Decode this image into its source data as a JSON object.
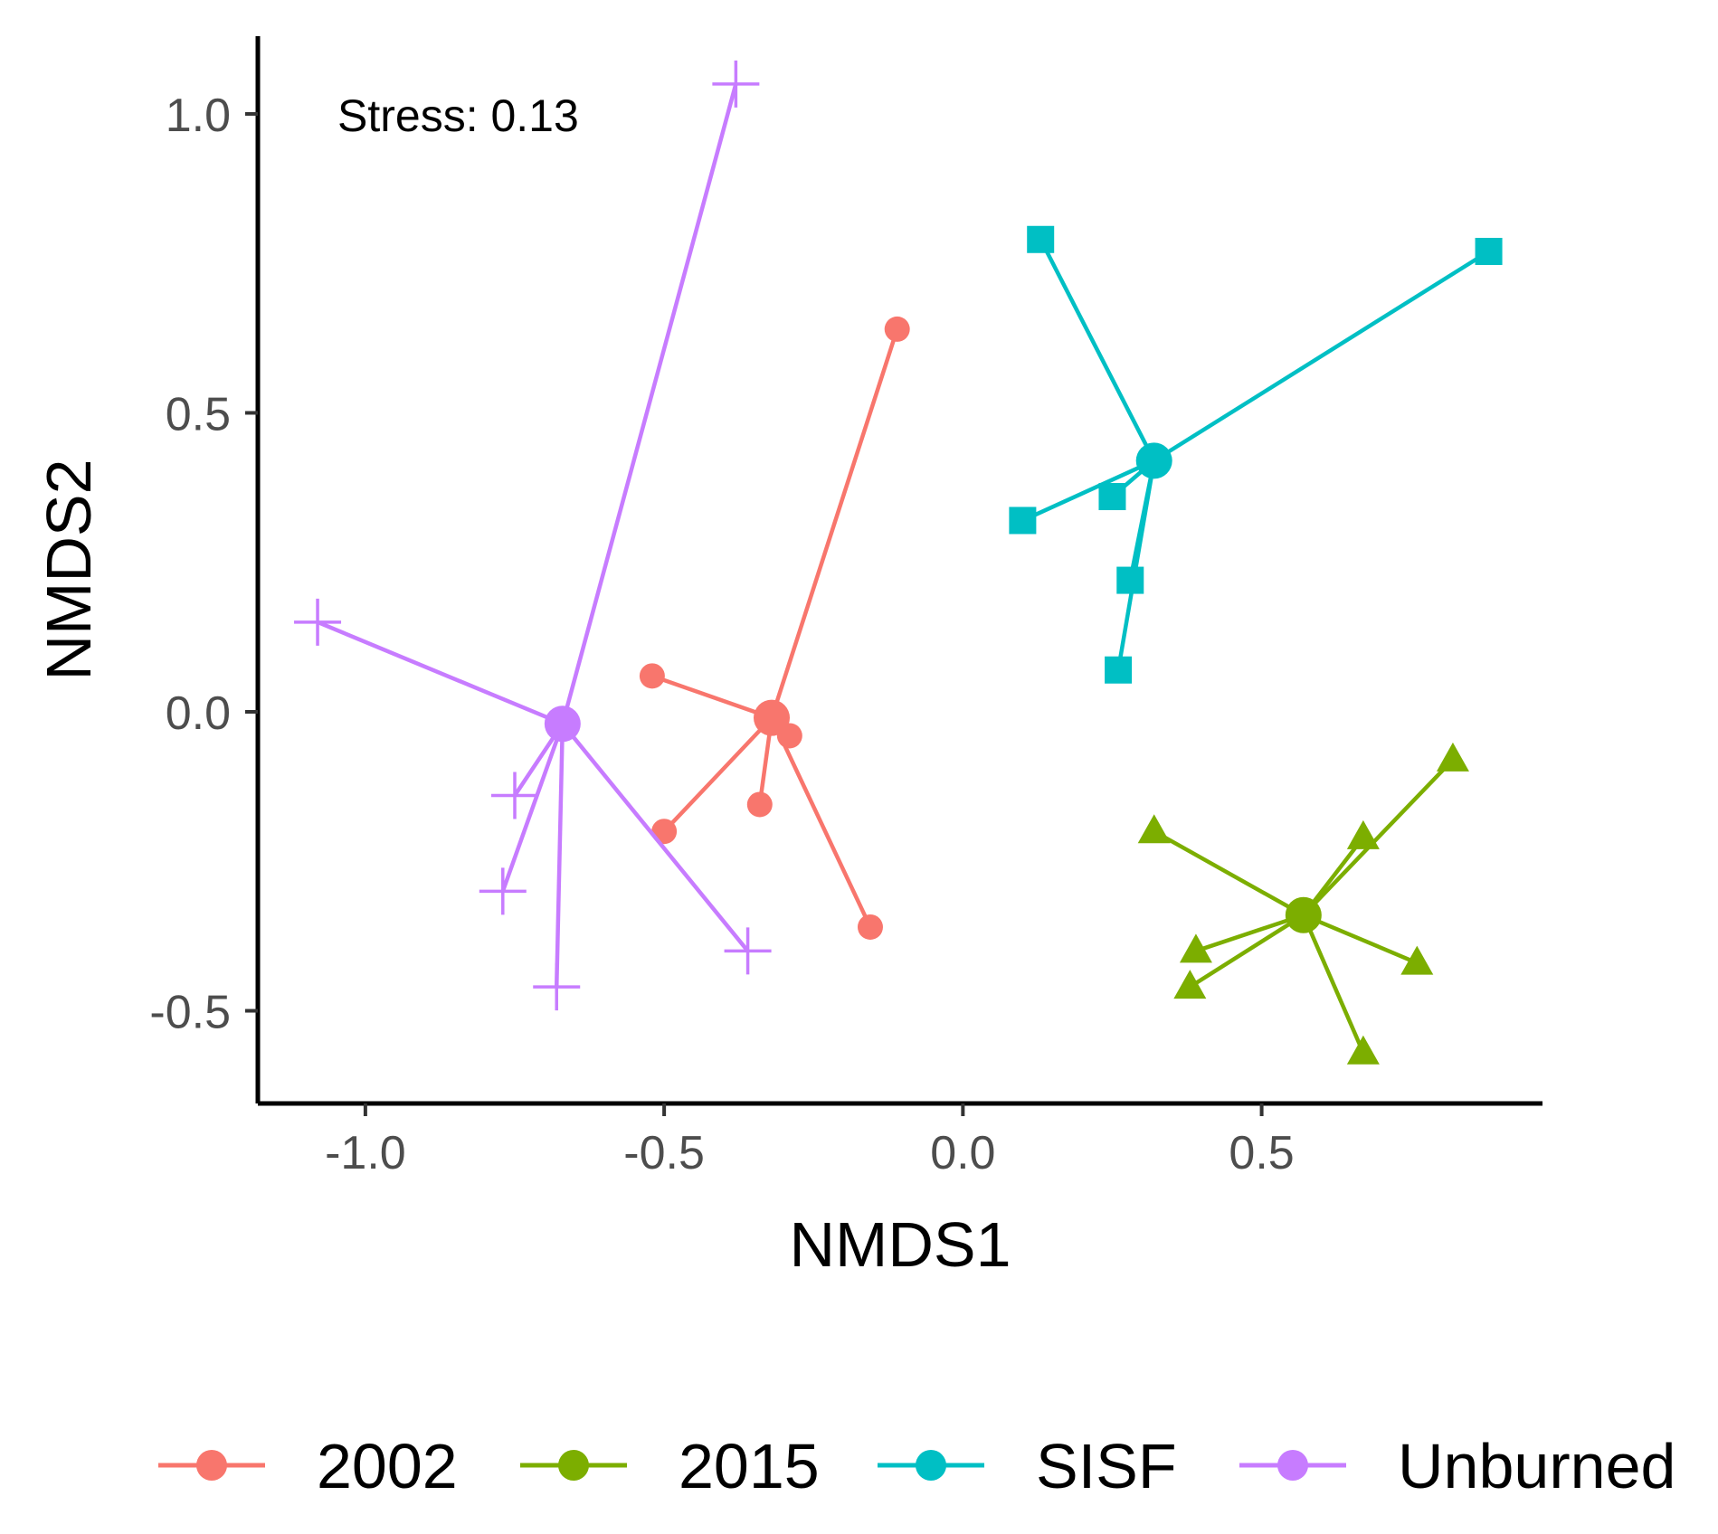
{
  "chart_data": {
    "type": "scatter",
    "title": "",
    "xlabel": "NMDS1",
    "ylabel": "NMDS2",
    "xlim": [
      -1.18,
      0.97
    ],
    "ylim": [
      -0.655,
      1.13
    ],
    "xticks": [
      -1.0,
      -0.5,
      0.0,
      0.5
    ],
    "yticks": [
      -0.5,
      0.0,
      0.5,
      1.0
    ],
    "xtick_labels": [
      "-1.0",
      "-0.5",
      "0.0",
      "0.5"
    ],
    "ytick_labels": [
      "-0.5",
      "0.0",
      "0.5",
      "1.0"
    ],
    "annotation": "Stress: 0.13",
    "grid": false,
    "legend_position": "bottom",
    "series": [
      {
        "name": "2002",
        "color": "#F8766D",
        "shape": "circle",
        "centroid": [
          -0.32,
          -0.01
        ],
        "points": [
          [
            -0.11,
            0.64
          ],
          [
            -0.52,
            0.06
          ],
          [
            -0.29,
            -0.04
          ],
          [
            -0.34,
            -0.155
          ],
          [
            -0.5,
            -0.2
          ],
          [
            -0.155,
            -0.36
          ]
        ]
      },
      {
        "name": "2015",
        "color": "#7CAE00",
        "shape": "triangle",
        "centroid": [
          0.57,
          -0.34
        ],
        "points": [
          [
            0.82,
            -0.08
          ],
          [
            0.32,
            -0.2
          ],
          [
            0.67,
            -0.21
          ],
          [
            0.76,
            -0.42
          ],
          [
            0.39,
            -0.4
          ],
          [
            0.38,
            -0.46
          ],
          [
            0.67,
            -0.57
          ]
        ]
      },
      {
        "name": "SISF",
        "color": "#00BFC4",
        "shape": "square",
        "centroid": [
          0.32,
          0.42
        ],
        "points": [
          [
            0.13,
            0.79
          ],
          [
            0.88,
            0.77
          ],
          [
            0.1,
            0.32
          ],
          [
            0.25,
            0.36
          ],
          [
            0.28,
            0.22
          ],
          [
            0.26,
            0.07
          ]
        ]
      },
      {
        "name": "Unburned",
        "color": "#C77CFF",
        "shape": "plus",
        "centroid": [
          -0.67,
          -0.02
        ],
        "points": [
          [
            -0.38,
            1.05
          ],
          [
            -1.08,
            0.15
          ],
          [
            -0.75,
            -0.14
          ],
          [
            -0.77,
            -0.3
          ],
          [
            -0.68,
            -0.46
          ],
          [
            -0.36,
            -0.4
          ]
        ]
      }
    ]
  }
}
